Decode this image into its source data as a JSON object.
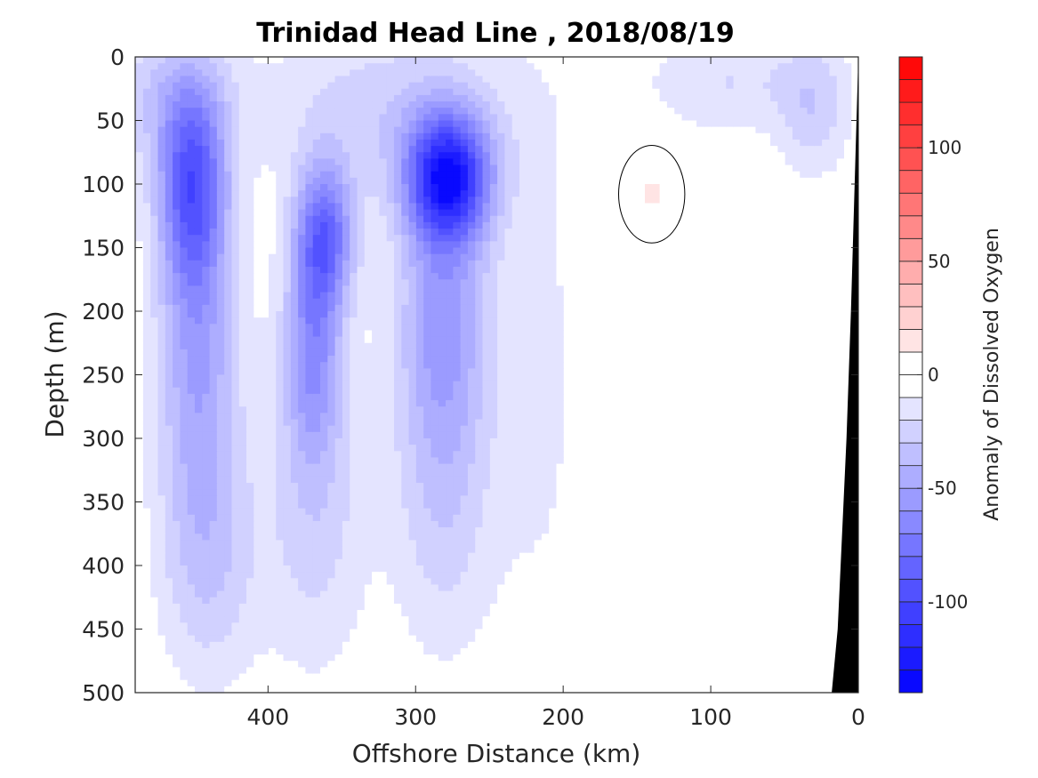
{
  "chart_data": {
    "type": "heatmap",
    "title": "Trinidad Head Line , 2018/08/19",
    "xlabel": "Offshore Distance (km)",
    "ylabel": "Depth (m)",
    "colorbar_label": "Anomaly of Dissolved Oxygen",
    "x_reversed": true,
    "xlim": [
      0,
      490
    ],
    "ylim": [
      0,
      500
    ],
    "y_reversed": true,
    "xticks": [
      400,
      300,
      200,
      100,
      0
    ],
    "yticks": [
      0,
      50,
      100,
      150,
      200,
      250,
      300,
      350,
      400,
      450,
      500
    ],
    "clim": [
      -140,
      140
    ],
    "colorbar_ticks": [
      100,
      50,
      0,
      -50,
      -100
    ],
    "colorbar_step": 10,
    "colormap": {
      "negative": "#0000ff",
      "zero": "#ffffff",
      "positive": "#ff0000"
    },
    "zero_contour": true,
    "bathymetry_color": "#000000",
    "bathymetry_polygon": [
      [
        0,
        0
      ],
      [
        2,
        80
      ],
      [
        5,
        200
      ],
      [
        8,
        300
      ],
      [
        12,
        400
      ],
      [
        14,
        450
      ],
      [
        18,
        500
      ],
      [
        0,
        500
      ]
    ],
    "features": [
      {
        "x": 452,
        "depth": 100,
        "sigma_x": 16,
        "sigma_d": 55,
        "amp": -75
      },
      {
        "x": 448,
        "depth": 230,
        "sigma_x": 20,
        "sigma_d": 100,
        "amp": -50
      },
      {
        "x": 440,
        "depth": 400,
        "sigma_x": 25,
        "sigma_d": 70,
        "amp": -25
      },
      {
        "x": 362,
        "depth": 140,
        "sigma_x": 14,
        "sigma_d": 40,
        "amp": -75
      },
      {
        "x": 370,
        "depth": 230,
        "sigma_x": 14,
        "sigma_d": 60,
        "amp": -55
      },
      {
        "x": 368,
        "depth": 360,
        "sigma_x": 25,
        "sigma_d": 90,
        "amp": -25
      },
      {
        "x": 278,
        "depth": 95,
        "sigma_x": 20,
        "sigma_d": 35,
        "amp": -110
      },
      {
        "x": 282,
        "depth": 200,
        "sigma_x": 22,
        "sigma_d": 80,
        "amp": -50
      },
      {
        "x": 282,
        "depth": 350,
        "sigma_x": 25,
        "sigma_d": 90,
        "amp": -25
      },
      {
        "x": 320,
        "depth": 40,
        "sigma_x": 60,
        "sigma_d": 50,
        "amp": -25
      },
      {
        "x": 470,
        "depth": 30,
        "sigma_x": 30,
        "sigma_d": 40,
        "amp": -25
      },
      {
        "x": 90,
        "depth": 20,
        "sigma_x": 40,
        "sigma_d": 30,
        "amp": -20
      },
      {
        "x": 30,
        "depth": 40,
        "sigma_x": 18,
        "sigma_d": 40,
        "amp": -25
      },
      {
        "x": 140,
        "depth": 108,
        "sigma_x": 8,
        "sigma_d": 12,
        "amp": 13
      },
      {
        "x": 215,
        "depth": 250,
        "sigma_x": 25,
        "sigma_d": 180,
        "amp": -12
      }
    ]
  }
}
